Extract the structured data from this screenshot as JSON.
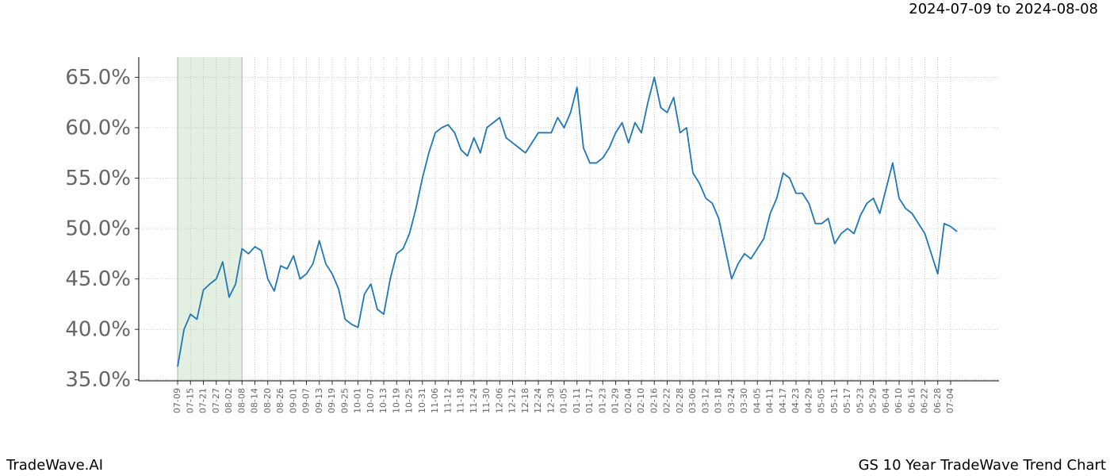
{
  "header": {
    "date_range": "2024-07-09 to 2024-08-08"
  },
  "footer": {
    "brand": "TradeWave.AI",
    "chart_name": "GS 10 Year TradeWave Trend Chart"
  },
  "chart_data": {
    "type": "line",
    "color": "#1f77b4",
    "grid": true,
    "highlight": {
      "from": "07-09",
      "to": "08-08",
      "color": "#e3f0e1"
    },
    "ylim": [
      34.9,
      67.0
    ],
    "yticks": [
      {
        "value": 35,
        "label": "35.0%"
      },
      {
        "value": 40,
        "label": "40.0%"
      },
      {
        "value": 45,
        "label": "45.0%"
      },
      {
        "value": 50,
        "label": "50.0%"
      },
      {
        "value": 55,
        "label": "55.0%"
      },
      {
        "value": 60,
        "label": "60.0%"
      },
      {
        "value": 65,
        "label": "65.0%"
      }
    ],
    "categories": [
      "07-09",
      null,
      "07-15",
      null,
      "07-21",
      null,
      "07-27",
      null,
      "08-02",
      null,
      "08-08",
      null,
      "08-14",
      null,
      "08-20",
      null,
      "08-26",
      null,
      "09-01",
      null,
      "09-07",
      null,
      "09-13",
      null,
      "09-19",
      null,
      "09-25",
      null,
      "10-01",
      null,
      "10-07",
      null,
      "10-13",
      null,
      "10-19",
      null,
      "10-25",
      null,
      "10-31",
      null,
      "11-06",
      null,
      "11-12",
      null,
      "11-18",
      null,
      "11-24",
      null,
      "11-30",
      null,
      "12-06",
      null,
      "12-12",
      null,
      "12-18",
      null,
      "12-24",
      null,
      "12-30",
      null,
      "01-05",
      null,
      "01-11",
      null,
      "01-17",
      null,
      "01-23",
      null,
      "01-29",
      null,
      "02-04",
      null,
      "02-10",
      null,
      "02-16",
      null,
      "02-22",
      null,
      "02-28",
      null,
      "03-06",
      null,
      "03-12",
      null,
      "03-18",
      null,
      "03-24",
      null,
      "03-30",
      null,
      "04-05",
      null,
      "04-11",
      null,
      "04-17",
      null,
      "04-23",
      null,
      "04-29",
      null,
      "05-05",
      null,
      "05-11",
      null,
      "05-17",
      null,
      "05-23",
      null,
      "05-29",
      null,
      "06-04",
      null,
      "06-10",
      null,
      "06-16",
      null,
      "06-22",
      null,
      "06-28",
      null,
      "07-04",
      null
    ],
    "values": [
      36.3,
      40.0,
      41.5,
      41.0,
      43.9,
      44.5,
      45.0,
      46.7,
      43.2,
      44.5,
      48.0,
      47.5,
      48.2,
      47.8,
      45.0,
      43.8,
      46.3,
      46.0,
      47.3,
      45.0,
      45.5,
      46.5,
      48.8,
      46.5,
      45.5,
      44.0,
      41.0,
      40.5,
      40.2,
      43.5,
      44.5,
      42.0,
      41.5,
      45.0,
      47.5,
      48.0,
      49.5,
      52.0,
      55.0,
      57.5,
      59.5,
      60.0,
      60.3,
      59.5,
      57.8,
      57.2,
      59.0,
      57.5,
      60.0,
      60.5,
      61.0,
      59.0,
      58.5,
      58.0,
      57.5,
      58.5,
      59.5,
      59.5,
      59.5,
      61.0,
      60.0,
      61.5,
      64.0,
      58.0,
      56.5,
      56.5,
      57.0,
      58.0,
      59.5,
      60.5,
      58.5,
      60.5,
      59.5,
      62.5,
      65.0,
      62.0,
      61.5,
      63.0,
      59.5,
      60.0,
      55.5,
      54.5,
      53.0,
      52.5,
      51.0,
      48.0,
      45.0,
      46.5,
      47.5,
      47.0,
      48.0,
      49.0,
      51.5,
      53.0,
      55.5,
      55.0,
      53.5,
      53.5,
      52.5,
      50.5,
      50.5,
      51.0,
      48.5,
      49.5,
      50.0,
      49.5,
      51.3,
      52.5,
      53.0,
      51.5,
      54.0,
      56.5,
      53.0,
      52.0,
      51.5,
      50.5,
      49.5,
      47.5,
      45.5,
      50.5,
      50.2,
      49.7
    ]
  }
}
